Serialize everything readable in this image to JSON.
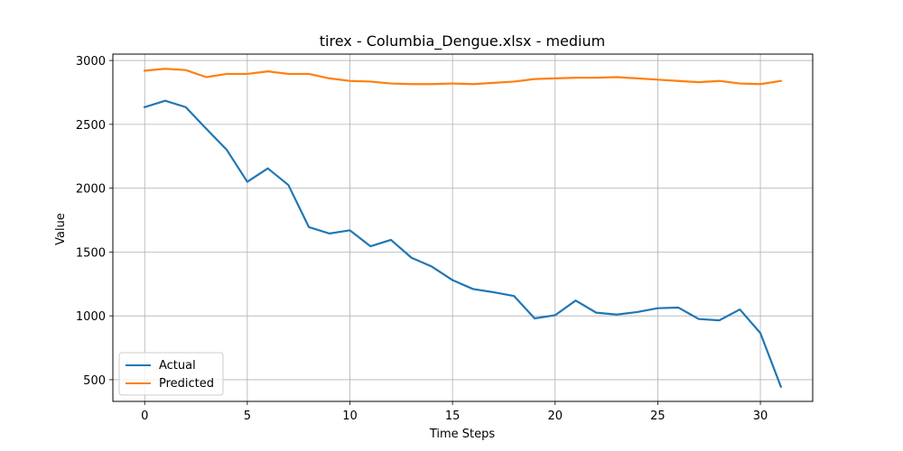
{
  "chart_data": {
    "type": "line",
    "title": "tirex - Columbia_Dengue.xlsx - medium",
    "xlabel": "Time Steps",
    "ylabel": "Value",
    "xlim": [
      -1.55,
      32.55
    ],
    "ylim": [
      330,
      3050
    ],
    "grid": true,
    "legend_position": "lower-left",
    "xticks": [
      0,
      5,
      10,
      15,
      20,
      25,
      30
    ],
    "yticks": [
      500,
      1000,
      1500,
      2000,
      2500,
      3000
    ],
    "x": [
      0,
      1,
      2,
      3,
      4,
      5,
      6,
      7,
      8,
      9,
      10,
      11,
      12,
      13,
      14,
      15,
      16,
      17,
      18,
      19,
      20,
      21,
      22,
      23,
      24,
      25,
      26,
      27,
      28,
      29,
      30,
      31
    ],
    "series": [
      {
        "name": "Actual",
        "color": "#1f77b4",
        "values": [
          2635,
          2685,
          2635,
          2465,
          2300,
          2050,
          2155,
          2025,
          1695,
          1645,
          1670,
          1545,
          1595,
          1455,
          1385,
          1280,
          1210,
          1185,
          1155,
          980,
          1005,
          1120,
          1025,
          1010,
          1030,
          1060,
          1065,
          975,
          965,
          1050,
          865,
          445
        ]
      },
      {
        "name": "Predicted",
        "color": "#ff7f0e",
        "values": [
          2920,
          2935,
          2925,
          2870,
          2895,
          2895,
          2915,
          2895,
          2895,
          2860,
          2840,
          2835,
          2820,
          2815,
          2815,
          2820,
          2815,
          2825,
          2835,
          2855,
          2860,
          2865,
          2865,
          2870,
          2860,
          2850,
          2840,
          2830,
          2840,
          2820,
          2815,
          2840
        ]
      }
    ]
  }
}
